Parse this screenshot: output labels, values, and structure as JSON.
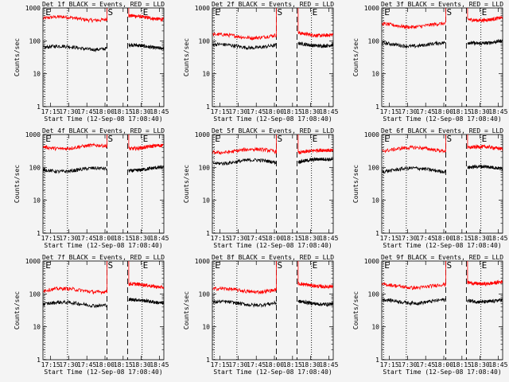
{
  "chart_data": {
    "type": "line",
    "layout": {
      "rows": 3,
      "cols": 3
    },
    "shared": {
      "ylabel": "Counts/sec",
      "xlabel": "Start Time (12-Sep-08 17:08:40)",
      "x_ticks": [
        "17:15",
        "17:30",
        "17:45",
        "18:00",
        "18:15",
        "18:30",
        "18:45"
      ],
      "x_tick_minutes": [
        6.33,
        21.33,
        36.33,
        51.33,
        66.33,
        81.33,
        96.33
      ],
      "xlim_minutes": [
        0,
        100
      ],
      "y_scale": "log",
      "ylim": [
        1,
        1000
      ],
      "y_ticks": [
        "1",
        "10",
        "100",
        "1000"
      ],
      "y_tick_values": [
        1,
        10,
        100,
        1000
      ],
      "markers": [
        {
          "label": "E",
          "minute": 1.5,
          "style": "dotted"
        },
        {
          "label": "",
          "minute": 20.3,
          "style": "dotted"
        },
        {
          "label": "S",
          "minute": 53.0,
          "style": "dashed"
        },
        {
          "label": "",
          "minute": 70.0,
          "style": "dashed"
        },
        {
          "label": "E",
          "minute": 82.0,
          "style": "dotted"
        }
      ],
      "gap_minutes": [
        53.0,
        71.0
      ],
      "series_colors": {
        "events": "#000000",
        "lld": "#ff0000"
      }
    },
    "panels": [
      {
        "title": "Det 1f BLACK = Events, RED = LLD",
        "events_before": 62,
        "events_after": 68,
        "lld_before": 480,
        "lld_after": 520
      },
      {
        "title": "Det 2f BLACK = Events, RED = LLD",
        "events_before": 70,
        "events_after": 80,
        "lld_before": 140,
        "lld_after": 165
      },
      {
        "title": "Det 3f BLACK = Events, RED = LLD",
        "events_before": 78,
        "events_after": 95,
        "lld_before": 300,
        "lld_after": 480
      },
      {
        "title": "Det 4f BLACK = Events, RED = LLD",
        "events_before": 85,
        "events_after": 90,
        "lld_before": 420,
        "lld_after": 420
      },
      {
        "title": "Det 5f BLACK = Events, RED = LLD",
        "events_before": 150,
        "events_after": 160,
        "lld_before": 320,
        "lld_after": 300
      },
      {
        "title": "Det 6f BLACK = Events, RED = LLD",
        "events_before": 85,
        "events_after": 95,
        "lld_before": 360,
        "lld_after": 380
      },
      {
        "title": "Det 7f BLACK = Events, RED = LLD",
        "events_before": 50,
        "events_after": 60,
        "lld_before": 130,
        "lld_after": 180
      },
      {
        "title": "Det 8f BLACK = Events, RED = LLD",
        "events_before": 52,
        "events_after": 55,
        "lld_before": 130,
        "lld_after": 190
      },
      {
        "title": "Det 9f BLACK = Events, RED = LLD",
        "events_before": 60,
        "events_after": 65,
        "lld_before": 175,
        "lld_after": 230
      }
    ]
  }
}
